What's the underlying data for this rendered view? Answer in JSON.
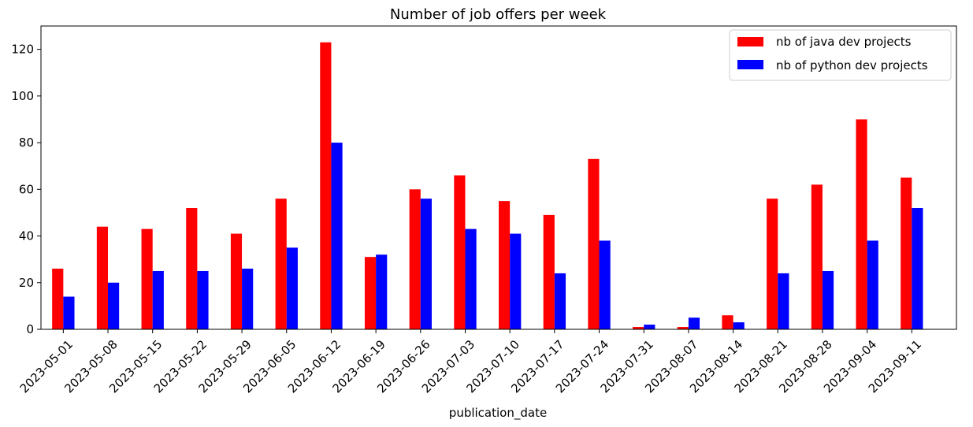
{
  "chart_data": {
    "type": "bar",
    "title": "Number of job offers per week",
    "xlabel": "publication_date",
    "ylabel": "",
    "ylim": [
      0,
      130
    ],
    "yticks": [
      0,
      20,
      40,
      60,
      80,
      100,
      120
    ],
    "grid": false,
    "legend_position": "top-right",
    "categories": [
      "2023-05-01",
      "2023-05-08",
      "2023-05-15",
      "2023-05-22",
      "2023-05-29",
      "2023-06-05",
      "2023-06-12",
      "2023-06-19",
      "2023-06-26",
      "2023-07-03",
      "2023-07-10",
      "2023-07-17",
      "2023-07-24",
      "2023-07-31",
      "2023-08-07",
      "2023-08-14",
      "2023-08-21",
      "2023-08-28",
      "2023-09-04",
      "2023-09-11"
    ],
    "series": [
      {
        "name": "nb of java dev projects",
        "color": "#ff0000",
        "values": [
          26,
          44,
          43,
          52,
          41,
          56,
          123,
          31,
          60,
          66,
          55,
          49,
          73,
          1,
          1,
          6,
          56,
          62,
          90,
          65
        ]
      },
      {
        "name": "nb of python dev projects",
        "color": "#0000ff",
        "values": [
          14,
          20,
          25,
          25,
          26,
          35,
          80,
          32,
          56,
          43,
          41,
          24,
          38,
          2,
          5,
          3,
          24,
          25,
          38,
          52
        ]
      }
    ]
  }
}
